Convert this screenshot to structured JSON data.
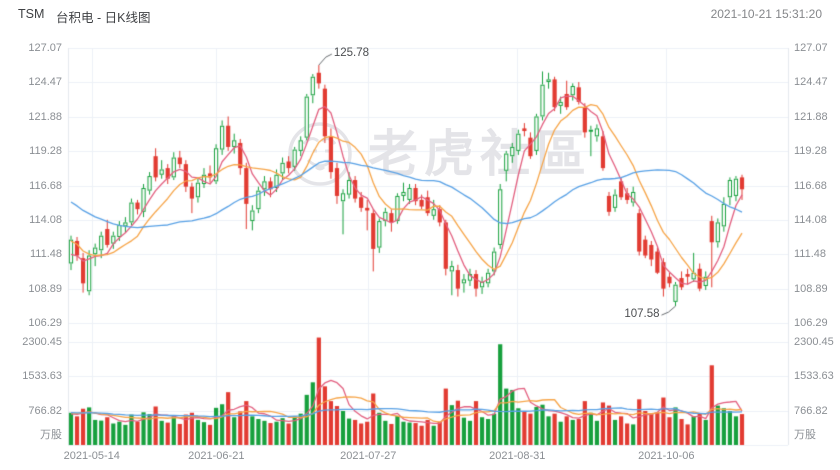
{
  "header": {
    "symbol": "TSM",
    "title": "台积电 - 日K线图",
    "timestamp": "2021-10-21 15:31:20"
  },
  "axis": {
    "price_labels": [
      "127.07",
      "124.47",
      "121.88",
      "119.28",
      "116.68",
      "114.08",
      "111.48",
      "108.89",
      "106.29"
    ],
    "volume_labels": [
      "2300.45",
      "1533.63",
      "766.82"
    ],
    "unit_left": "万股",
    "unit_right": "万股",
    "date_labels": [
      {
        "text": "2021-05-14",
        "pos": 0.033
      },
      {
        "text": "2021-06-21",
        "pos": 0.206
      },
      {
        "text": "2021-07-27",
        "pos": 0.417
      },
      {
        "text": "2021-08-31",
        "pos": 0.624
      },
      {
        "text": "2021-10-06",
        "pos": 0.831
      }
    ]
  },
  "watermark": {
    "text": "老虎社區"
  },
  "annotations": [
    {
      "text": "125.78",
      "day": 41,
      "field": "high",
      "side": "right"
    },
    {
      "text": "107.58",
      "day": 100,
      "field": "low",
      "side": "left"
    }
  ],
  "chart_data": {
    "type": "candlestick",
    "title": "TSM 台积电 日K线图",
    "panes": [
      "price",
      "volume"
    ],
    "price_axis": {
      "min": 106.29,
      "max": 127.07,
      "ticks": [
        127.07,
        124.47,
        121.88,
        119.28,
        116.68,
        114.08,
        111.48,
        108.89,
        106.29
      ]
    },
    "volume_axis": {
      "ticks": [
        766.82,
        1533.63,
        2300.45
      ],
      "unit": "万股",
      "max": 2300.45
    },
    "up_color": "#17a03d",
    "down_color": "#e23b32",
    "ma_lines": [
      {
        "name": "MA5",
        "period": 5,
        "color": "#e25f7f"
      },
      {
        "name": "MA10",
        "period": 10,
        "color": "#f6a447"
      },
      {
        "name": "MA30",
        "period": 30,
        "color": "#57a0e5"
      }
    ],
    "vol_ma_lines": [
      {
        "name": "MAVOL5",
        "period": 5,
        "color": "#e25f7f"
      },
      {
        "name": "MAVOL10",
        "period": 10,
        "color": "#f6a447"
      },
      {
        "name": "MAVOL30",
        "period": 30,
        "color": "#57a0e5"
      }
    ],
    "ohlc": [
      [
        110.8,
        112.9,
        110.3,
        112.6
      ],
      [
        112.5,
        112.8,
        111.0,
        111.4
      ],
      [
        111.2,
        111.6,
        108.6,
        109.3
      ],
      [
        108.7,
        111.8,
        108.4,
        111.4
      ],
      [
        111.5,
        112.3,
        110.6,
        112.0
      ],
      [
        111.8,
        113.2,
        111.2,
        112.9
      ],
      [
        113.4,
        114.1,
        112.0,
        112.2
      ],
      [
        112.3,
        113.2,
        111.9,
        112.9
      ],
      [
        112.8,
        114.0,
        112.5,
        113.7
      ],
      [
        113.6,
        114.3,
        113.1,
        113.9
      ],
      [
        113.9,
        115.7,
        113.7,
        115.4
      ],
      [
        115.4,
        115.6,
        114.5,
        114.9
      ],
      [
        114.7,
        116.8,
        114.3,
        116.5
      ],
      [
        116.3,
        117.7,
        116.0,
        117.4
      ],
      [
        118.9,
        119.5,
        117.0,
        117.3
      ],
      [
        117.5,
        118.6,
        117.2,
        117.9
      ],
      [
        118.0,
        118.3,
        116.8,
        117.2
      ],
      [
        117.3,
        119.2,
        117.1,
        118.8
      ],
      [
        118.8,
        119.3,
        118.0,
        118.3
      ],
      [
        118.3,
        118.6,
        116.2,
        116.6
      ],
      [
        116.6,
        116.9,
        114.6,
        115.7
      ],
      [
        115.8,
        117.2,
        115.4,
        116.9
      ],
      [
        116.8,
        118.0,
        116.5,
        117.5
      ],
      [
        117.6,
        118.2,
        116.9,
        117.3
      ],
      [
        117.0,
        119.8,
        116.8,
        119.5
      ],
      [
        119.4,
        121.6,
        119.0,
        121.2
      ],
      [
        121.2,
        121.9,
        119.3,
        119.6
      ],
      [
        119.6,
        120.6,
        119.1,
        120.1
      ],
      [
        119.9,
        120.2,
        117.5,
        118.0
      ],
      [
        118.0,
        118.4,
        113.4,
        115.3
      ],
      [
        114.0,
        115.2,
        113.3,
        114.8
      ],
      [
        114.9,
        116.6,
        114.6,
        116.3
      ],
      [
        116.4,
        117.4,
        115.9,
        117.0
      ],
      [
        117.0,
        117.3,
        115.8,
        116.4
      ],
      [
        116.5,
        117.9,
        116.2,
        117.5
      ],
      [
        117.6,
        118.8,
        117.1,
        118.4
      ],
      [
        118.5,
        118.9,
        117.6,
        118.0
      ],
      [
        118.1,
        119.6,
        117.8,
        119.4
      ],
      [
        119.3,
        120.4,
        118.9,
        120.1
      ],
      [
        120.3,
        123.6,
        120.1,
        123.4
      ],
      [
        123.5,
        125.1,
        122.9,
        124.9
      ],
      [
        125.2,
        125.78,
        124.0,
        124.4
      ],
      [
        124.0,
        124.3,
        119.9,
        120.4
      ],
      [
        120.4,
        121.0,
        117.2,
        117.7
      ],
      [
        118.0,
        118.4,
        115.3,
        115.9
      ],
      [
        115.5,
        116.4,
        113.0,
        116.1
      ],
      [
        116.0,
        117.7,
        115.7,
        117.1
      ],
      [
        117.1,
        117.4,
        115.4,
        115.7
      ],
      [
        115.8,
        116.2,
        114.7,
        115.0
      ],
      [
        115.0,
        115.6,
        113.3,
        114.8
      ],
      [
        114.6,
        114.9,
        110.2,
        111.9
      ],
      [
        112.0,
        114.2,
        111.6,
        114.0
      ],
      [
        114.0,
        115.0,
        113.6,
        114.7
      ],
      [
        114.6,
        114.9,
        113.2,
        113.9
      ],
      [
        114.0,
        116.1,
        113.8,
        115.9
      ],
      [
        115.9,
        116.9,
        115.5,
        116.2
      ],
      [
        115.6,
        116.8,
        115.3,
        116.5
      ],
      [
        116.5,
        116.8,
        115.2,
        115.5
      ],
      [
        115.6,
        116.0,
        114.9,
        115.1
      ],
      [
        115.8,
        116.3,
        114.4,
        114.6
      ],
      [
        114.4,
        115.6,
        114.1,
        114.9
      ],
      [
        114.9,
        115.2,
        113.6,
        113.9
      ],
      [
        113.9,
        114.1,
        109.9,
        110.4
      ],
      [
        110.2,
        111.0,
        108.4,
        110.6
      ],
      [
        110.3,
        110.7,
        108.3,
        108.9
      ],
      [
        109.3,
        110.0,
        108.6,
        109.6
      ],
      [
        109.5,
        110.4,
        109.1,
        110.0
      ],
      [
        110.0,
        110.3,
        108.3,
        108.9
      ],
      [
        109.0,
        109.8,
        108.5,
        109.4
      ],
      [
        109.3,
        110.4,
        109.0,
        110.1
      ],
      [
        110.2,
        112.0,
        109.9,
        111.7
      ],
      [
        112.2,
        116.8,
        111.9,
        116.4
      ],
      [
        117.8,
        119.3,
        117.0,
        119.1
      ],
      [
        118.9,
        119.9,
        118.4,
        119.6
      ],
      [
        119.3,
        120.9,
        119.0,
        120.6
      ],
      [
        121.0,
        121.4,
        120.4,
        120.8
      ],
      [
        120.3,
        120.7,
        118.7,
        118.9
      ],
      [
        119.3,
        122.1,
        119.0,
        121.9
      ],
      [
        121.9,
        125.3,
        121.6,
        124.3
      ],
      [
        124.5,
        125.2,
        124.0,
        124.7
      ],
      [
        124.7,
        124.9,
        122.3,
        122.6
      ],
      [
        122.7,
        123.4,
        122.1,
        123.0
      ],
      [
        123.6,
        124.6,
        122.4,
        122.6
      ],
      [
        123.5,
        124.4,
        123.1,
        124.2
      ],
      [
        124.1,
        124.5,
        122.8,
        123.0
      ],
      [
        122.6,
        122.9,
        120.3,
        120.7
      ],
      [
        120.8,
        121.2,
        118.9,
        120.9
      ],
      [
        120.4,
        121.3,
        120.0,
        121.0
      ],
      [
        120.4,
        120.8,
        117.8,
        118.0
      ],
      [
        115.9,
        116.2,
        114.4,
        114.7
      ],
      [
        115.0,
        116.4,
        114.7,
        116.0
      ],
      [
        117.0,
        117.3,
        115.6,
        115.8
      ],
      [
        116.1,
        116.5,
        115.3,
        115.6
      ],
      [
        115.4,
        116.6,
        115.1,
        116.2
      ],
      [
        114.6,
        114.9,
        111.4,
        111.7
      ],
      [
        112.6,
        112.9,
        111.2,
        111.4
      ],
      [
        112.2,
        112.5,
        110.6,
        111.1
      ],
      [
        111.7,
        112.0,
        110.0,
        110.1
      ],
      [
        110.9,
        111.2,
        108.3,
        108.9
      ],
      [
        109.8,
        110.1,
        109.0,
        109.3
      ],
      [
        107.9,
        109.4,
        107.58,
        109.2
      ],
      [
        109.7,
        110.2,
        108.8,
        109.0
      ],
      [
        110.0,
        110.4,
        109.2,
        109.8
      ],
      [
        109.6,
        111.6,
        109.4,
        110.1
      ],
      [
        110.4,
        110.8,
        108.7,
        108.9
      ],
      [
        109.1,
        110.2,
        108.8,
        109.8
      ],
      [
        114.0,
        114.4,
        109.0,
        112.4
      ],
      [
        112.4,
        114.2,
        112.0,
        113.9
      ],
      [
        113.6,
        115.8,
        113.2,
        115.3
      ],
      [
        115.8,
        117.3,
        115.2,
        117.1
      ],
      [
        115.9,
        117.4,
        115.5,
        117.2
      ],
      [
        117.3,
        117.5,
        115.6,
        116.4
      ]
    ],
    "volume": [
      720,
      640,
      810,
      840,
      560,
      545,
      620,
      480,
      520,
      450,
      680,
      520,
      730,
      690,
      860,
      540,
      500,
      640,
      470,
      680,
      720,
      560,
      510,
      450,
      830,
      910,
      1180,
      620,
      750,
      980,
      640,
      580,
      540,
      490,
      520,
      600,
      480,
      640,
      700,
      1120,
      1400,
      2400,
      1310,
      980,
      870,
      760,
      590,
      560,
      480,
      520,
      1150,
      720,
      540,
      470,
      650,
      520,
      500,
      490,
      430,
      560,
      430,
      520,
      1260,
      890,
      990,
      610,
      540,
      980,
      620,
      580,
      700,
      2250,
      1260,
      1230,
      820,
      760,
      700,
      850,
      900,
      640,
      700,
      520,
      640,
      560,
      580,
      980,
      720,
      540,
      950,
      880,
      560,
      640,
      480,
      460,
      1020,
      760,
      690,
      720,
      1060,
      620,
      840,
      580,
      460,
      640,
      700,
      560,
      1780,
      880,
      820,
      760,
      640,
      690
    ],
    "lead_in_close": [
      119.6,
      120.2,
      119.5,
      118.8,
      119.3,
      118.1,
      117.6,
      118.0,
      117.1,
      116.4,
      116.8,
      116.0,
      115.3,
      115.9,
      116.3,
      116.9,
      116.1,
      115.4,
      114.9,
      115.2,
      114.5,
      113.8,
      114.4,
      113.7,
      113.1,
      112.5,
      111.9,
      111.3,
      110.6,
      111.0
    ],
    "lead_in_volume": [
      820,
      760,
      900,
      680,
      720,
      650,
      880,
      940,
      700,
      760,
      820,
      640,
      600,
      720,
      680,
      760,
      700,
      640,
      580,
      660,
      720,
      780,
      640,
      700,
      760,
      820,
      700,
      660,
      720,
      680
    ]
  }
}
